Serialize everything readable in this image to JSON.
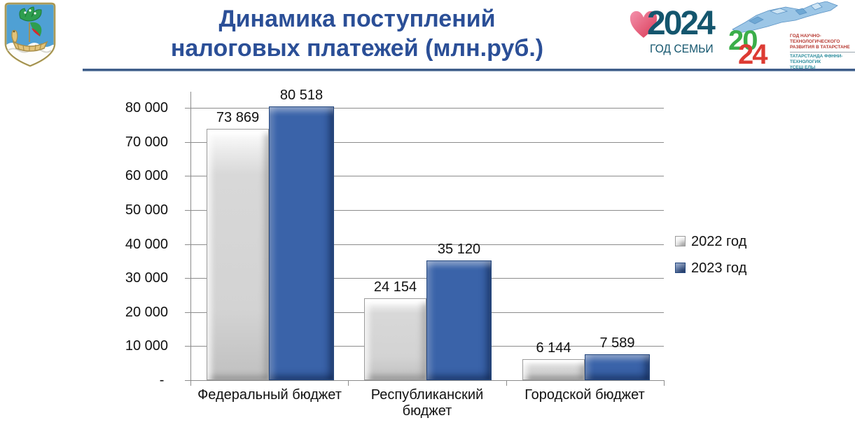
{
  "header": {
    "title_line1": "Динамика поступлений",
    "title_line2": "налоговых платежей (млн.руб.)",
    "logos": {
      "coat_of_arms": "naberezhnye-chelny-city-emblem",
      "family_year": {
        "year": "2024",
        "subtitle": "ГОД СЕМЬИ"
      },
      "tatarstan_year": {
        "digits_top": "20",
        "digits_bottom": "24",
        "line1": "ГОД НАУЧНО-ТЕХНОЛОГИЧЕСКОГО",
        "line2": "РАЗВИТИЯ В ТАТАРСТАНЕ",
        "line3": "ТАТАРСТАНДА ФӘННИ-ТЕХНОЛОГИК",
        "line4": "ҮСЕШ ЕЛЫ"
      }
    }
  },
  "chart_data": {
    "type": "bar",
    "title": "Динамика поступлений налоговых платежей (млн.руб.)",
    "categories": [
      "Федеральный бюджет",
      "Республиканский бюджет",
      "Городской бюджет"
    ],
    "series": [
      {
        "name": "2022 год",
        "values": [
          73869,
          24154,
          6144
        ],
        "color": "#D5D5D5"
      },
      {
        "name": "2023 год",
        "values": [
          80518,
          35120,
          7589
        ],
        "color": "#3A63A9"
      }
    ],
    "ylim": [
      0,
      80000
    ],
    "ytick_step": 10000,
    "zero_tick_label": "-",
    "grid": "horizontal",
    "legend_position": "right",
    "data_labels": true
  },
  "colors": {
    "title": "#2B4F97",
    "bar_2022": "#D5D5D5",
    "bar_2023": "#3A63A9",
    "grid": "#8C8C8C",
    "separator_dark": "#2F4F7D",
    "separator_light": "#A9BCD4",
    "family_logo_text": "#14566E",
    "family_logo_heart": "#E8526F",
    "tat_green": "#3BAE49",
    "tat_red": "#DD3B33",
    "tat_teal": "#2A8C9C"
  }
}
